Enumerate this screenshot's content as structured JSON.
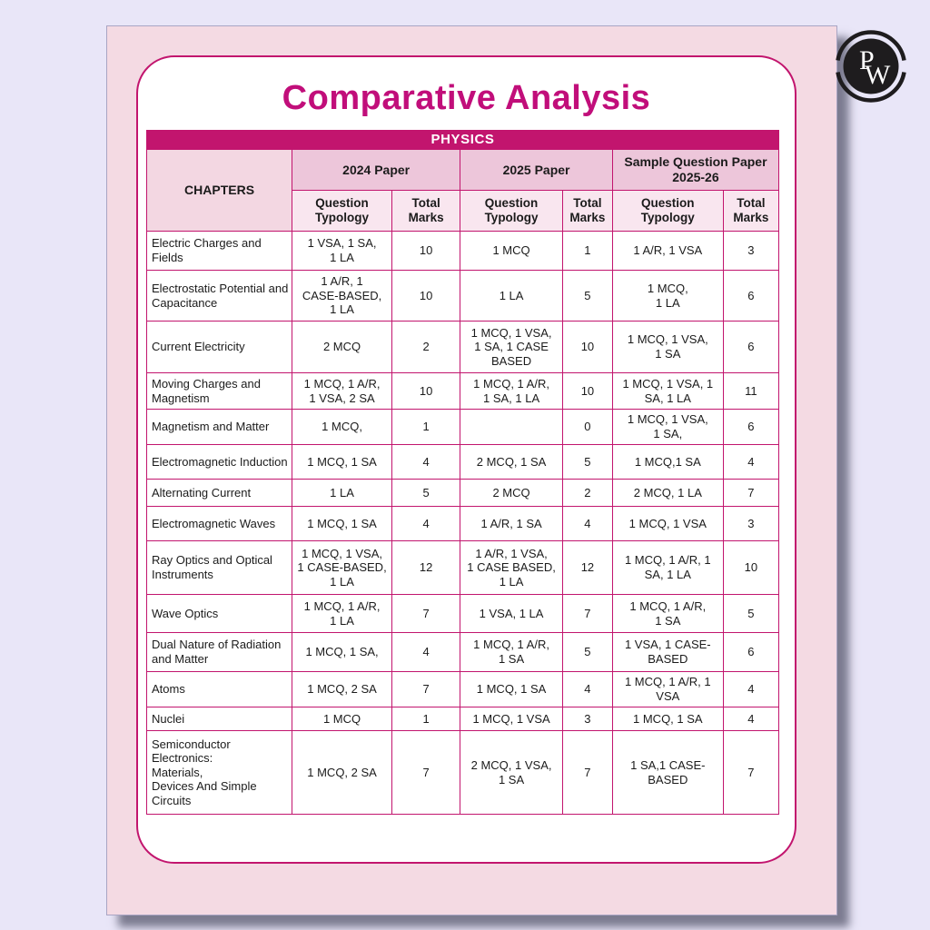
{
  "page": {
    "title": "Comparative Analysis",
    "subject_banner": "PHYSICS"
  },
  "logo": {
    "letter_p": "P",
    "letter_w": "W"
  },
  "table": {
    "chapters_header": "CHAPTERS",
    "groups": [
      {
        "label": "2024 Paper"
      },
      {
        "label": "2025 Paper"
      },
      {
        "label": "Sample Question Paper\n2025-26"
      }
    ],
    "subheaders": {
      "qt": "Question Typology",
      "tm": "Total Marks"
    },
    "rows": [
      [
        "Electric Charges and Fields",
        "1 VSA, 1 SA,\n1 LA",
        "10",
        "1 MCQ",
        "1",
        "1 A/R, 1 VSA",
        "3"
      ],
      [
        "Electrostatic Potential and Capacitance",
        "1 A/R, 1\nCASE-BASED,\n1 LA",
        "10",
        "1 LA",
        "5",
        "1 MCQ,\n1 LA",
        "6"
      ],
      [
        "Current Electricity",
        "2 MCQ",
        "2",
        "1 MCQ, 1 VSA,\n1 SA, 1 CASE\nBASED",
        "10",
        "1 MCQ, 1 VSA,\n1 SA",
        "6"
      ],
      [
        "Moving Charges and Magnetism",
        "1 MCQ, 1 A/R,\n1 VSA, 2 SA",
        "10",
        "1 MCQ, 1 A/R,\n1 SA, 1 LA",
        "10",
        "1 MCQ, 1 VSA, 1\nSA, 1 LA",
        "11"
      ],
      [
        "Magnetism and Matter",
        "1 MCQ,",
        "1",
        "",
        "0",
        "1 MCQ, 1 VSA,\n1 SA,",
        "6"
      ],
      [
        "Electromagnetic Induction",
        "1 MCQ, 1 SA",
        "4",
        "2 MCQ, 1 SA",
        "5",
        "1 MCQ,1 SA",
        "4"
      ],
      [
        "Alternating Current",
        "1 LA",
        "5",
        "2 MCQ",
        "2",
        "2 MCQ, 1 LA",
        "7"
      ],
      [
        "Electromagnetic Waves",
        "1 MCQ, 1 SA",
        "4",
        "1 A/R, 1 SA",
        "4",
        "1 MCQ, 1 VSA",
        "3"
      ],
      [
        "Ray Optics and Optical Instruments",
        "1 MCQ, 1 VSA,\n1 CASE-BASED,\n1 LA",
        "12",
        "1 A/R, 1 VSA,\n1 CASE BASED,\n1 LA",
        "12",
        "1 MCQ, 1 A/R,  1\nSA, 1 LA",
        "10"
      ],
      [
        "Wave Optics",
        "1 MCQ, 1 A/R,\n1 LA",
        "7",
        "1 VSA, 1 LA",
        "7",
        "1 MCQ, 1 A/R,\n1 SA",
        "5"
      ],
      [
        "Dual Nature of Radiation and Matter",
        "1 MCQ, 1 SA,",
        "4",
        "1 MCQ, 1 A/R,\n1 SA",
        "5",
        "1 VSA, 1 CASE-\nBASED",
        "6"
      ],
      [
        "Atoms",
        "1 MCQ, 2 SA",
        "7",
        "1 MCQ, 1 SA",
        "4",
        "1 MCQ, 1 A/R, 1\nVSA",
        "4"
      ],
      [
        "Nuclei",
        "1 MCQ",
        "1",
        "1 MCQ, 1 VSA",
        "3",
        "1 MCQ, 1 SA",
        "4"
      ],
      [
        "Semiconductor\nElectronics:\nMaterials,\nDevices And Simple\nCircuits",
        "1 MCQ, 2 SA",
        "7",
        "2 MCQ, 1 VSA,\n1 SA",
        "7",
        "1 SA,1 CASE-\nBASED",
        "7"
      ]
    ]
  },
  "colors": {
    "brand_magenta": "#c2156e",
    "title_magenta": "#c10e7a",
    "card_pink": "#f4dae3",
    "group_header_pink": "#edc6da",
    "subheader_pink": "#f9e6ef",
    "chapters_pink": "#f3d7e2",
    "background_lavender": "#e9e6f8"
  }
}
